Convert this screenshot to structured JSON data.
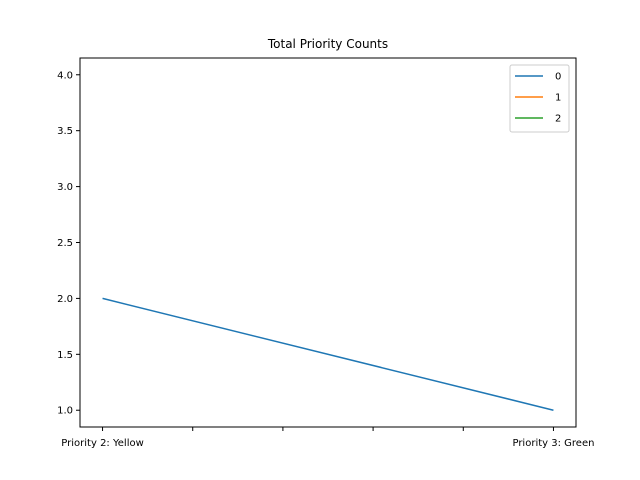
{
  "chart_data": {
    "type": "line",
    "title": "Total Priority Counts",
    "xlabel": "",
    "ylabel": "",
    "x_tick_labels": [
      "Priority 2: Yellow",
      "",
      "",
      "",
      "",
      "Priority 3: Green"
    ],
    "x": [
      0,
      5
    ],
    "xlim": [
      -0.25,
      5.25
    ],
    "ylim": [
      0.85,
      4.15
    ],
    "y_ticks": [
      "1.0",
      "1.5",
      "2.0",
      "2.5",
      "3.0",
      "3.5",
      "4.0"
    ],
    "y_tick_values": [
      1.0,
      1.5,
      2.0,
      2.5,
      3.0,
      3.5,
      4.0
    ],
    "grid": false,
    "legend_position": "top-right",
    "series": [
      {
        "name": "0",
        "color": "#1f77b4",
        "x": [
          0,
          5
        ],
        "values": [
          2,
          1
        ]
      },
      {
        "name": "1",
        "color": "#ff7f0e",
        "x": [],
        "values": []
      },
      {
        "name": "2",
        "color": "#2ca02c",
        "x": [],
        "values": []
      }
    ]
  }
}
